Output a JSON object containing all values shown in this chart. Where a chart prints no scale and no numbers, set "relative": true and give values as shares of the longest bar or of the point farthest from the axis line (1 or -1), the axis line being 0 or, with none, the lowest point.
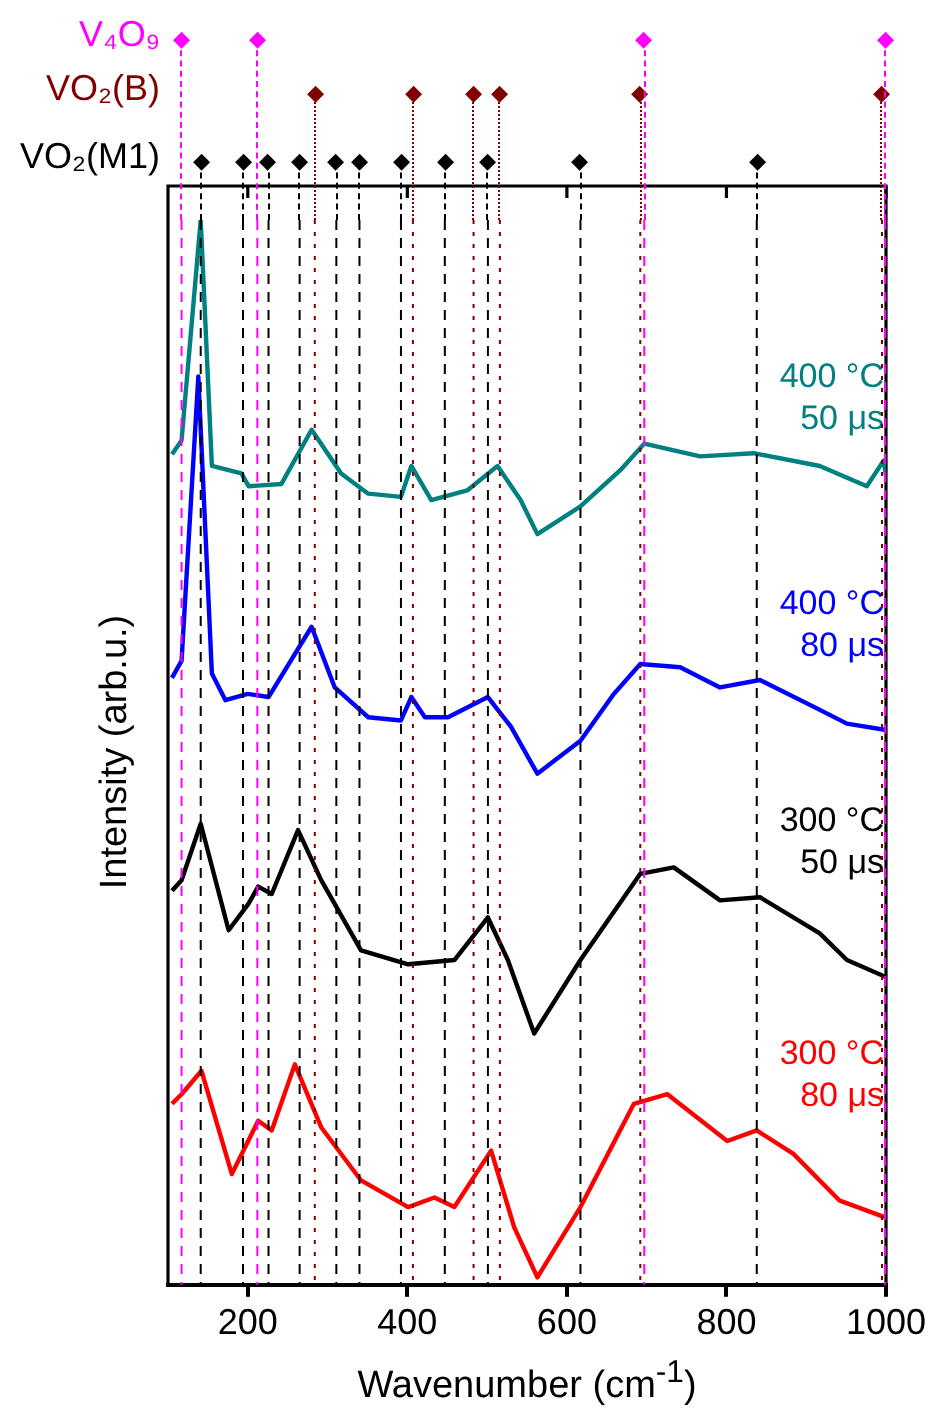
{
  "chart_data": {
    "type": "line",
    "xlabel": "Wavenumber (cm$^{-1}$)",
    "ylabel": "Intensity (arb.u.)",
    "relative": true,
    "xlim": [
      100,
      1000
    ],
    "xticks": [
      200,
      400,
      600,
      800,
      1000
    ],
    "grid": false,
    "legend": false,
    "marker": "none",
    "line_style": "solid",
    "annotations": [
      "V₄O₉",
      "VO₂(B)",
      "VO₂(M1)"
    ],
    "ref_lines": [
      {
        "axis": "x",
        "value": 117,
        "color": "#ff00ff",
        "line_style": "dashed"
      },
      {
        "axis": "x",
        "value": 212,
        "color": "#ff00ff",
        "line_style": "dashed"
      },
      {
        "axis": "x",
        "value": 697,
        "color": "#ff00ff",
        "line_style": "dashed"
      },
      {
        "axis": "x",
        "value": 999,
        "color": "#ff00ff",
        "line_style": "dashed"
      },
      {
        "axis": "x",
        "value": 284,
        "color": "#800000",
        "line_style": "dotted"
      },
      {
        "axis": "x",
        "value": 407,
        "color": "#800000",
        "line_style": "dotted"
      },
      {
        "axis": "x",
        "value": 483,
        "color": "#800000",
        "line_style": "dotted"
      },
      {
        "axis": "x",
        "value": 516,
        "color": "#800000",
        "line_style": "dotted"
      },
      {
        "axis": "x",
        "value": 692,
        "color": "#800000",
        "line_style": "dotted"
      },
      {
        "axis": "x",
        "value": 995,
        "color": "#800000",
        "line_style": "dotted"
      },
      {
        "axis": "x",
        "value": 141,
        "color": "#000000",
        "line_style": "dashed"
      },
      {
        "axis": "x",
        "value": 194,
        "color": "#000000",
        "line_style": "dashed"
      },
      {
        "axis": "x",
        "value": 226,
        "color": "#000000",
        "line_style": "dashed"
      },
      {
        "axis": "x",
        "value": 265,
        "color": "#000000",
        "line_style": "dashed"
      },
      {
        "axis": "x",
        "value": 311,
        "color": "#000000",
        "line_style": "dashed"
      },
      {
        "axis": "x",
        "value": 340,
        "color": "#000000",
        "line_style": "dashed"
      },
      {
        "axis": "x",
        "value": 392,
        "color": "#000000",
        "line_style": "dashed"
      },
      {
        "axis": "x",
        "value": 447,
        "color": "#000000",
        "line_style": "dashed"
      },
      {
        "axis": "x",
        "value": 501,
        "color": "#000000",
        "line_style": "dashed"
      },
      {
        "axis": "x",
        "value": 617,
        "color": "#000000",
        "line_style": "dashed"
      },
      {
        "axis": "x",
        "value": 838,
        "color": "#000000",
        "line_style": "dashed"
      }
    ],
    "series": [
      {
        "name": "400 °C 50 μs",
        "color": "#008080",
        "x": [
          105,
          117,
          141,
          155,
          192,
          201,
          242,
          280,
          317,
          351,
          392,
          405,
          430,
          475,
          513,
          542,
          563,
          617,
          667,
          697,
          767,
          834,
          917,
          976,
          997,
          1000
        ],
        "values": [
          0.78,
          0.793,
          1.0,
          0.769,
          0.762,
          0.75,
          0.752,
          0.803,
          0.762,
          0.743,
          0.74,
          0.769,
          0.737,
          0.746,
          0.769,
          0.737,
          0.705,
          0.731,
          0.765,
          0.79,
          0.778,
          0.781,
          0.769,
          0.75,
          0.774,
          0.76
        ]
      },
      {
        "name": "400 °C 80 μs",
        "color": "#0000ff",
        "x": [
          105,
          117,
          138,
          155,
          172,
          200,
          226,
          280,
          309,
          351,
          392,
          405,
          422,
          451,
          501,
          530,
          563,
          617,
          659,
          692,
          742,
          792,
          842,
          909,
          951,
          1000
        ],
        "values": [
          0.57,
          0.586,
          0.853,
          0.574,
          0.549,
          0.555,
          0.552,
          0.618,
          0.561,
          0.533,
          0.53,
          0.552,
          0.533,
          0.533,
          0.552,
          0.524,
          0.48,
          0.511,
          0.555,
          0.583,
          0.58,
          0.561,
          0.568,
          0.543,
          0.527,
          0.521
        ]
      },
      {
        "name": "300 °C 50 μs",
        "color": "#000000",
        "x": [
          105,
          117,
          141,
          176,
          201,
          213,
          230,
          263,
          292,
          342,
          401,
          459,
          501,
          526,
          559,
          617,
          692,
          734,
          792,
          842,
          917,
          951,
          1000
        ],
        "values": [
          0.37,
          0.38,
          0.433,
          0.333,
          0.358,
          0.374,
          0.367,
          0.427,
          0.38,
          0.314,
          0.301,
          0.305,
          0.345,
          0.305,
          0.236,
          0.305,
          0.386,
          0.392,
          0.361,
          0.364,
          0.33,
          0.305,
          0.289
        ]
      },
      {
        "name": "300 °C 80 μs",
        "color": "#ff0000",
        "x": [
          105,
          117,
          142,
          180,
          213,
          230,
          259,
          292,
          342,
          401,
          434,
          459,
          505,
          534,
          563,
          617,
          684,
          726,
          801,
          838,
          884,
          942,
          1000
        ],
        "values": [
          0.17,
          0.179,
          0.201,
          0.104,
          0.154,
          0.145,
          0.207,
          0.148,
          0.098,
          0.073,
          0.082,
          0.073,
          0.126,
          0.054,
          0.007,
          0.073,
          0.17,
          0.179,
          0.135,
          0.145,
          0.123,
          0.079,
          0.063
        ]
      }
    ]
  }
}
